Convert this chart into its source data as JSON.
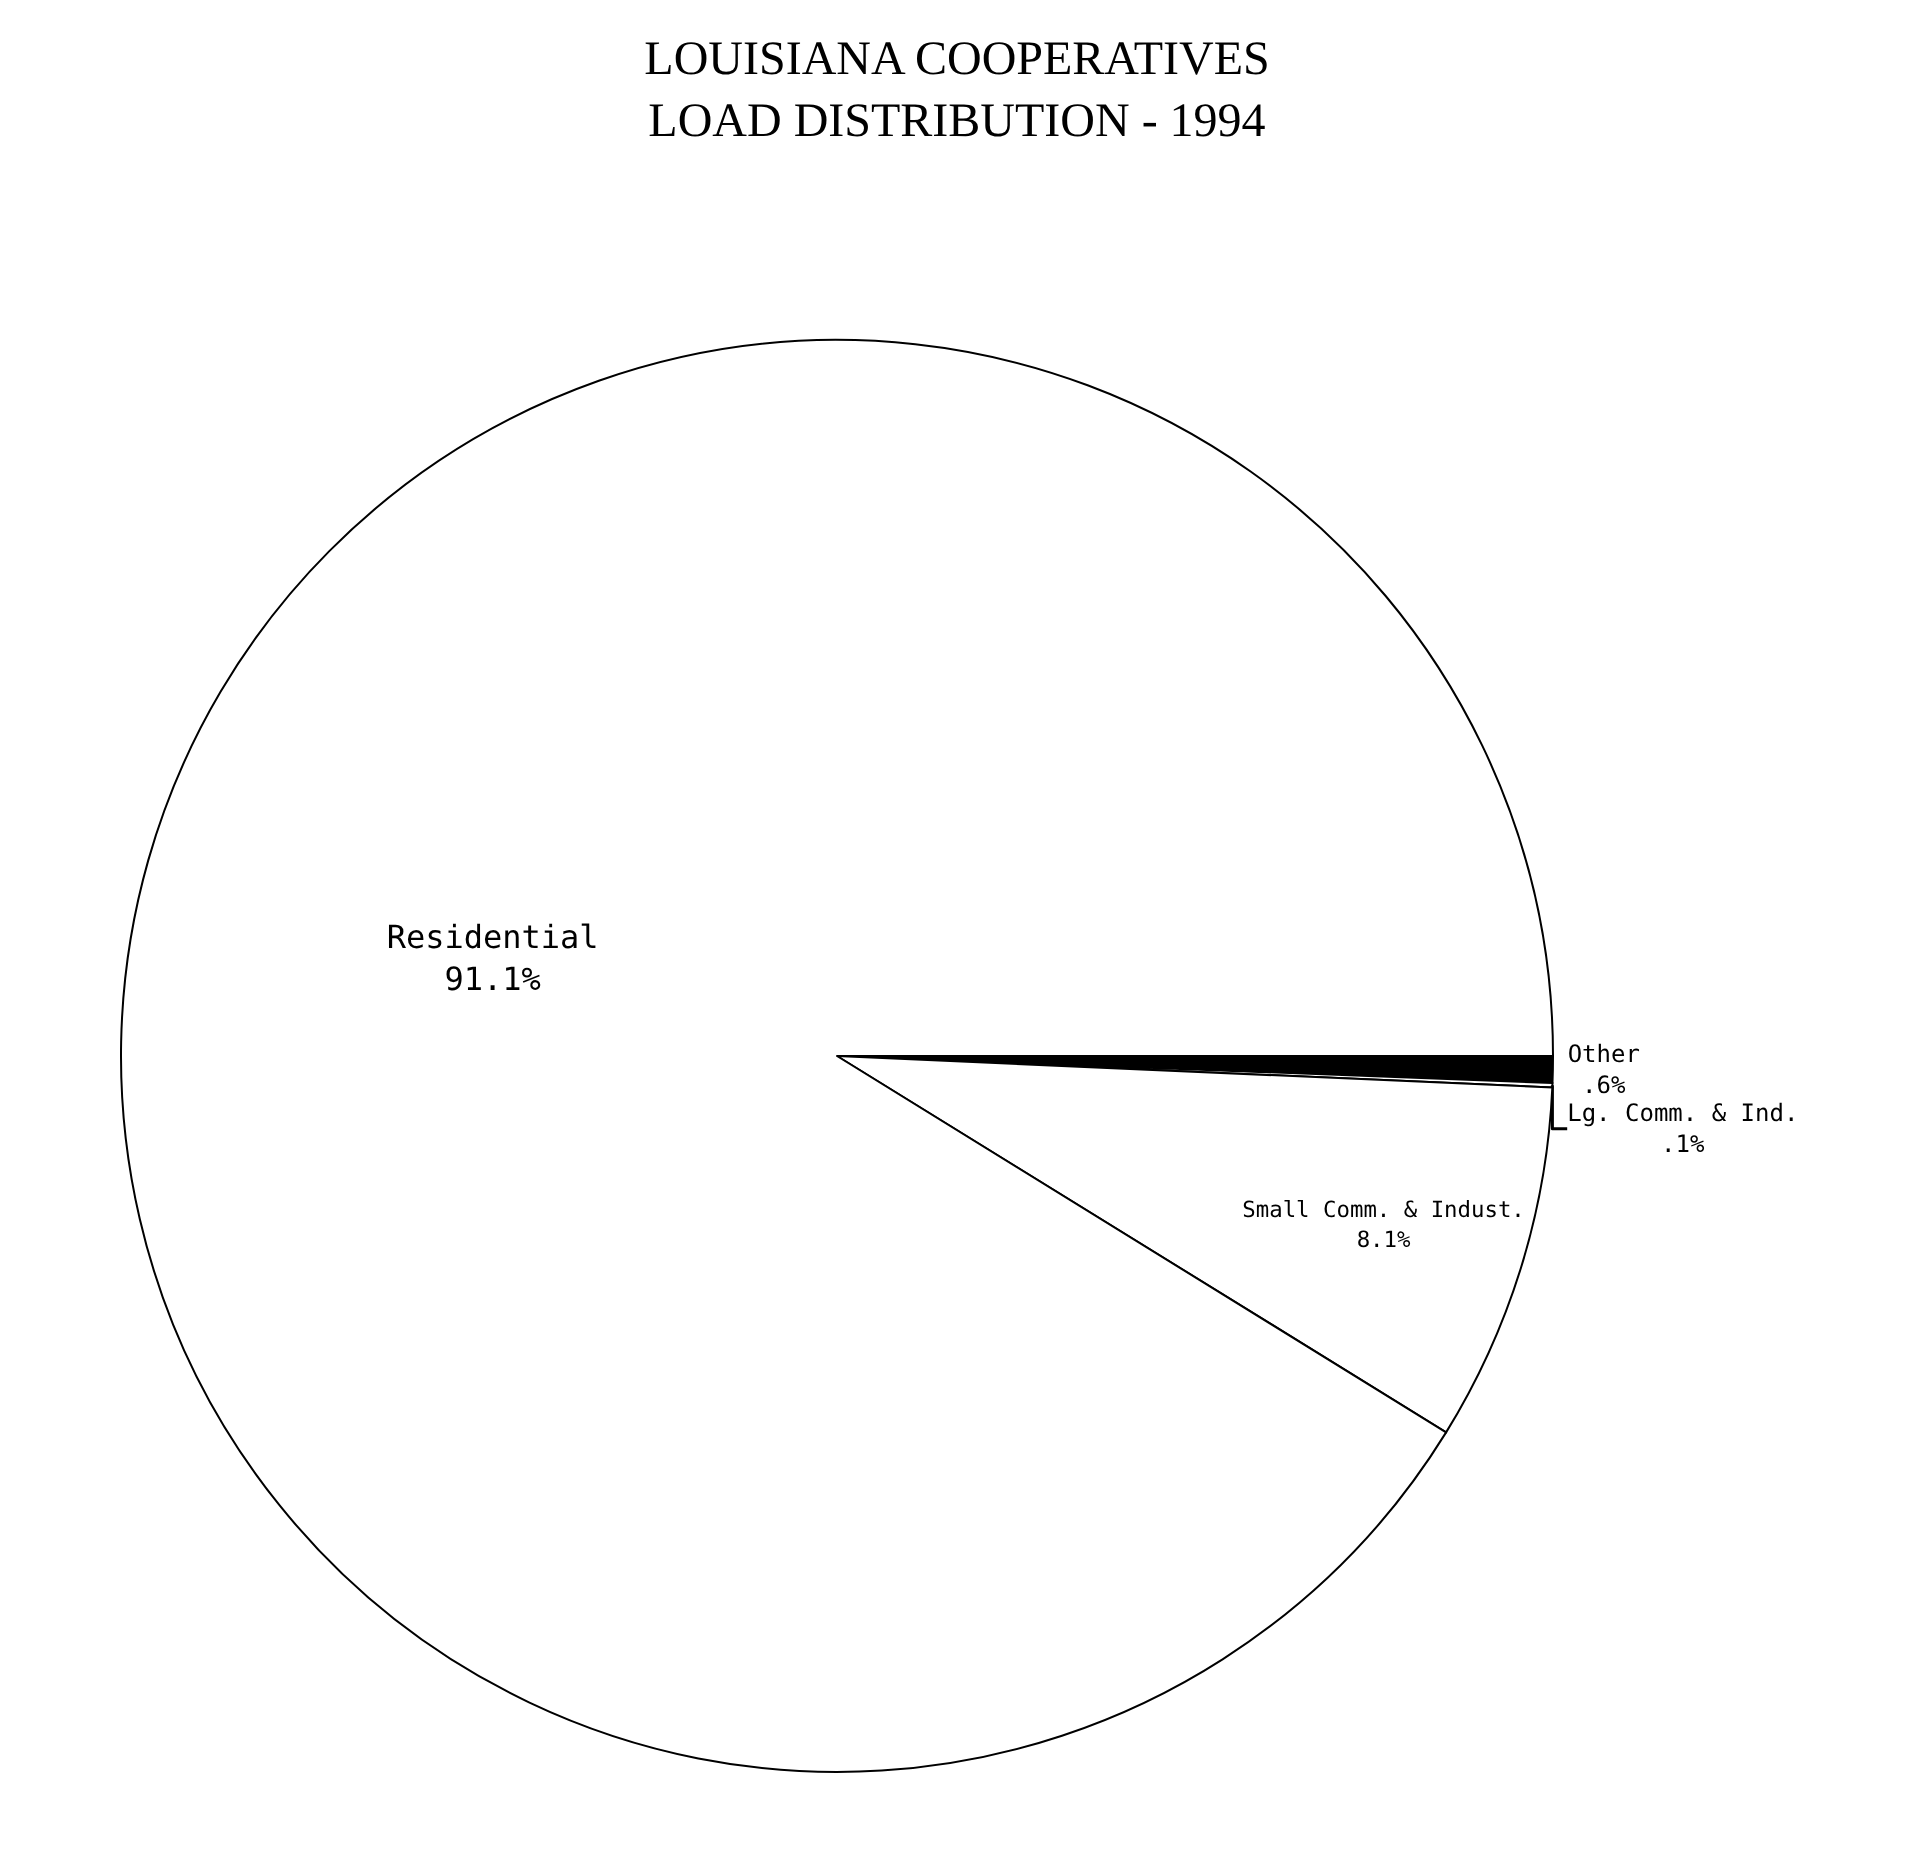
{
  "chart_data": {
    "type": "pie",
    "title": "LOUISIANA COOPERATIVES\nLOAD DISTRIBUTION - 1994",
    "categories": [
      "Other",
      "Lg. Comm. & Ind.",
      "Small Comm. & Indust.",
      "Residential"
    ],
    "values": [
      0.6,
      0.1,
      8.1,
      91.1
    ],
    "value_labels": [
      ".6%",
      ".1%",
      "8.1%",
      "91.1%"
    ],
    "colors": [
      "#000000",
      "#ffffff",
      "#ffffff",
      "#ffffff"
    ],
    "legend": false
  }
}
